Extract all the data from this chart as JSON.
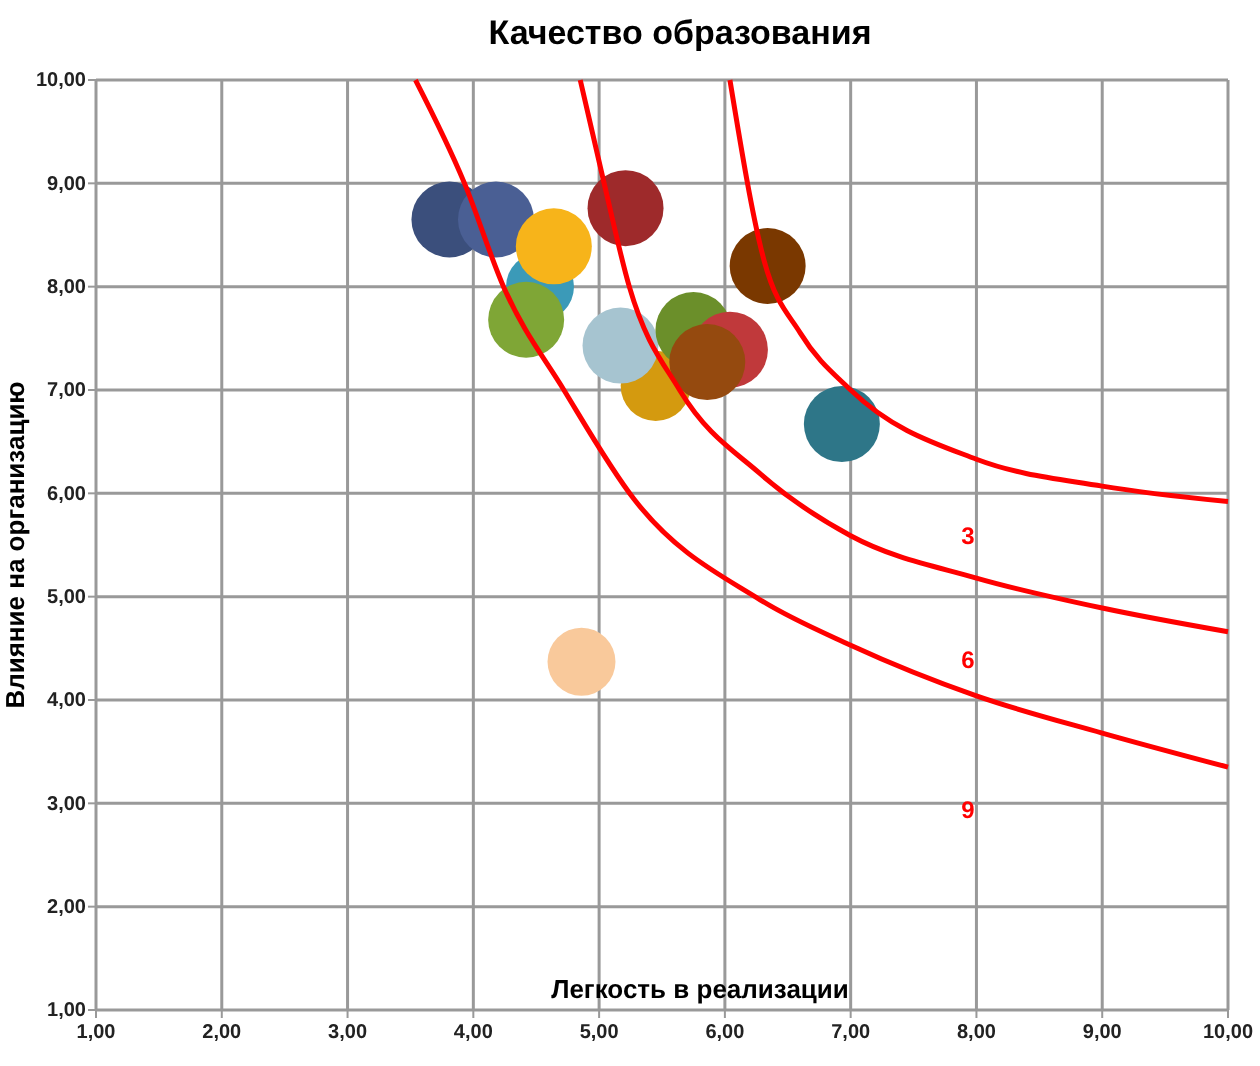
{
  "chart_data": {
    "type": "bubble",
    "title": "Качество образования",
    "xlabel": "Легкость в реализации",
    "ylabel": "Влияние на организацию",
    "xlim": [
      1,
      10
    ],
    "ylim": [
      1,
      10
    ],
    "xticks": [
      {
        "value": 1,
        "label": "1,00"
      },
      {
        "value": 2,
        "label": "2,00"
      },
      {
        "value": 3,
        "label": "3,00"
      },
      {
        "value": 4,
        "label": "4,00"
      },
      {
        "value": 5,
        "label": "5,00"
      },
      {
        "value": 6,
        "label": "6,00"
      },
      {
        "value": 7,
        "label": "7,00"
      },
      {
        "value": 8,
        "label": "8,00"
      },
      {
        "value": 9,
        "label": "9,00"
      },
      {
        "value": 10,
        "label": "10,00"
      }
    ],
    "yticks": [
      {
        "value": 1,
        "label": "1,00"
      },
      {
        "value": 2,
        "label": "2,00"
      },
      {
        "value": 3,
        "label": "3,00"
      },
      {
        "value": 4,
        "label": "4,00"
      },
      {
        "value": 5,
        "label": "5,00"
      },
      {
        "value": 6,
        "label": "6,00"
      },
      {
        "value": 7,
        "label": "7,00"
      },
      {
        "value": 8,
        "label": "8,00"
      },
      {
        "value": 9,
        "label": "9,00"
      },
      {
        "value": 10,
        "label": "10,00"
      }
    ],
    "grid": true,
    "series": [
      {
        "x": [
          4.53,
          3.81,
          4.18,
          4.64,
          4.42,
          5.21,
          5.45,
          5.17,
          5.75,
          6.04,
          5.86,
          6.34,
          6.93,
          4.86
        ],
        "values": [
          8.0,
          8.65,
          8.65,
          8.39,
          7.68,
          8.76,
          7.04,
          7.43,
          7.58,
          7.39,
          7.27,
          8.2,
          6.67,
          4.37
        ],
        "sizes": [
          0.8,
          1,
          1,
          1,
          1,
          1,
          0.85,
          1,
          1,
          1,
          1,
          1,
          1,
          0.8
        ],
        "colors": [
          "#3b9ab8",
          "#3b4f7c",
          "#4a5f94",
          "#f7b41a",
          "#7fa636",
          "#9e2a2b",
          "#d49a0f",
          "#a6c4d0",
          "#6b8f2a",
          "#c0393b",
          "#954a0f",
          "#7a3800",
          "#2e7688",
          "#f9c99b"
        ]
      },
      {
        "type": "line",
        "color": "#ff0000",
        "marker": "none",
        "x": [
          6.04,
          6.31,
          6.6,
          7,
          8,
          9,
          10
        ],
        "values": [
          10,
          8.26,
          7.55,
          7,
          6.33,
          6.07,
          5.92
        ]
      },
      {
        "type": "line",
        "color": "#ff0000",
        "marker": "none",
        "x": [
          4.85,
          5.04,
          5.24,
          5.64,
          6.28,
          7,
          8,
          9,
          10
        ],
        "values": [
          10,
          9,
          8,
          7,
          6.19,
          5.59,
          5.18,
          4.89,
          4.66
        ]
      },
      {
        "type": "line",
        "color": "#ff0000",
        "marker": "none",
        "x": [
          3.54,
          3.93,
          4.24,
          4.72,
          5.28,
          6.28,
          7,
          8,
          9,
          10
        ],
        "values": [
          10,
          9,
          8,
          7,
          5.94,
          4.97,
          4.53,
          4.04,
          3.68,
          3.35
        ]
      }
    ],
    "annotations": [
      "3",
      "6",
      "9"
    ]
  }
}
